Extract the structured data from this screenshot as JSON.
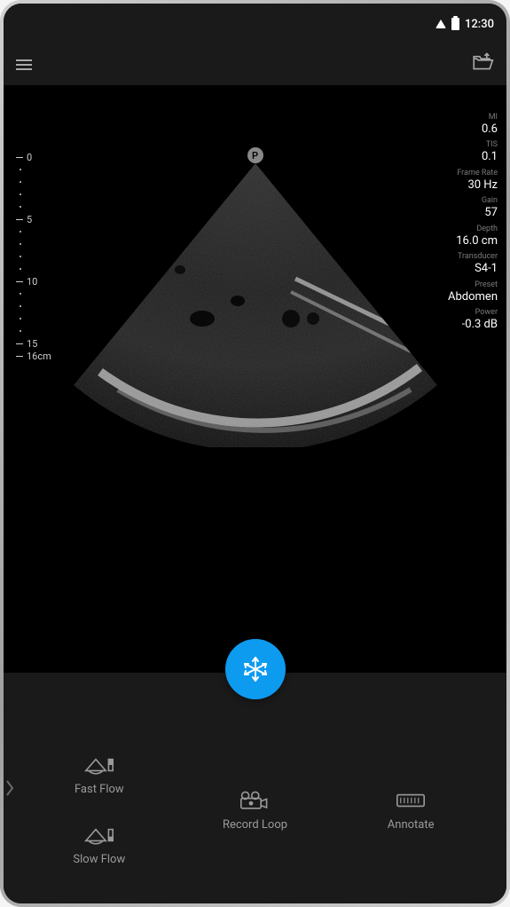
{
  "status_bar": {
    "time": "12:30"
  },
  "scan": {
    "probe_marker": "P",
    "depth_scale": {
      "majors": [
        "0",
        "5",
        "10",
        "15"
      ],
      "unit_label": "16cm",
      "minor_per_major": 4
    },
    "sector": {
      "apex_angle_deg": 90,
      "fill": "#1c1c1c",
      "speckle": "#3a3a3a",
      "bright_arc": "#bdbdbd"
    }
  },
  "info": [
    {
      "label": "MI",
      "value": "0.6"
    },
    {
      "label": "TIS",
      "value": "0.1"
    },
    {
      "label": "Frame Rate",
      "value": "30 Hz"
    },
    {
      "label": "Gain",
      "value": "57"
    },
    {
      "label": "Depth",
      "value": "16.0 cm"
    },
    {
      "label": "Transducer",
      "value": "S4-1"
    },
    {
      "label": "Preset",
      "value": "Abdomen"
    },
    {
      "label": "Power",
      "value": "-0.3 dB"
    }
  ],
  "freeze": {
    "accent": "#0d9bf0"
  },
  "tools": {
    "fast_flow": "Fast Flow",
    "slow_flow": "Slow Flow",
    "record_loop": "Record Loop",
    "annotate": "Annotate"
  },
  "colors": {
    "bg_black": "#000000",
    "bg_panel": "#1a1a1a",
    "text_muted": "#9a9a9a",
    "text_light": "#ffffff",
    "scale": "#cccccc"
  }
}
